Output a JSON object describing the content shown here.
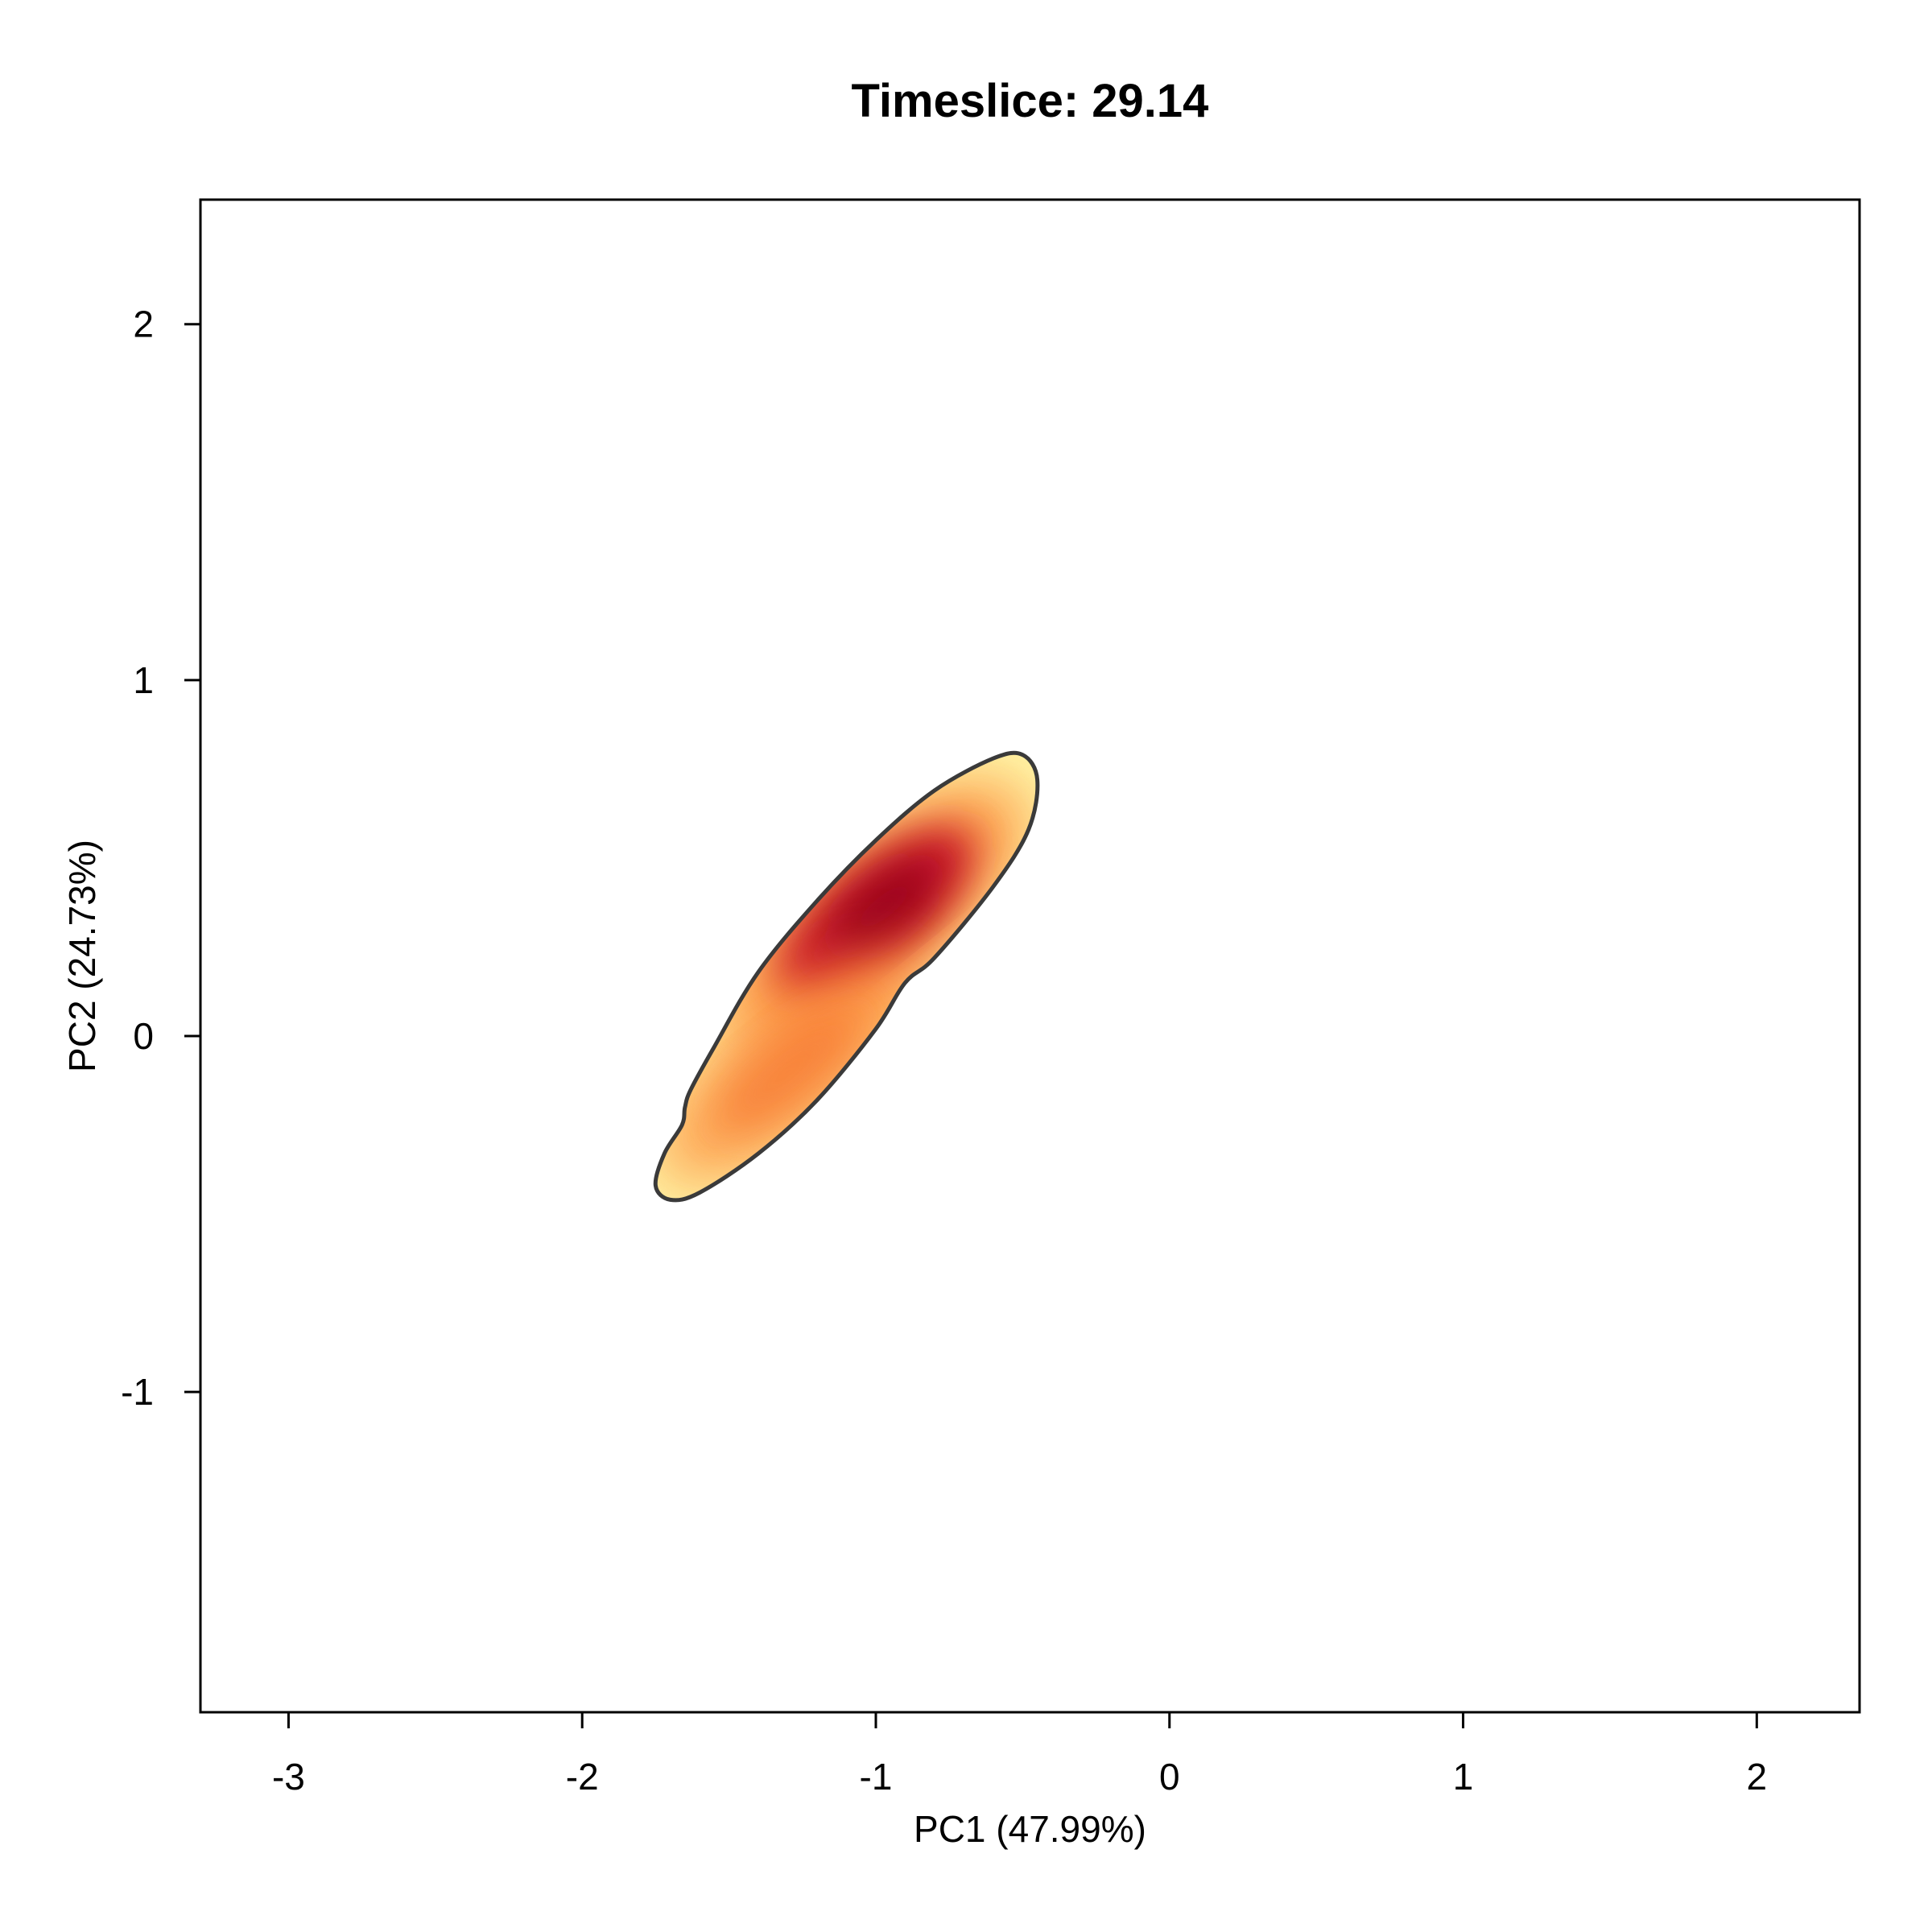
{
  "chart_data": {
    "type": "density",
    "title": "Timeslice: 29.14",
    "xlabel": "PC1 (47.99%)",
    "ylabel": "PC2 (24.73%)",
    "xlim": [
      -3.3,
      2.35
    ],
    "ylim": [
      -1.9,
      2.35
    ],
    "xticks": [
      -3,
      -2,
      -1,
      0,
      1,
      2
    ],
    "yticks": [
      -1,
      0,
      1,
      2
    ],
    "grid": false,
    "colors": {
      "low": "#fff7a8",
      "mid": "#fd8d3c",
      "high": "#bd0026",
      "contour": "#3a3a3a"
    },
    "density_peaks": [
      {
        "x": -1.0,
        "y": 0.35,
        "intensity": 1.0
      },
      {
        "x": -1.3,
        "y": -0.1,
        "intensity": 0.6
      }
    ],
    "outer_contour": [
      [
        -0.45,
        0.72
      ],
      [
        -0.5,
        0.79
      ],
      [
        -0.6,
        0.78
      ],
      [
        -0.8,
        0.69
      ],
      [
        -1.0,
        0.55
      ],
      [
        -1.2,
        0.38
      ],
      [
        -1.4,
        0.18
      ],
      [
        -1.55,
        -0.03
      ],
      [
        -1.63,
        -0.15
      ],
      [
        -1.65,
        -0.2
      ],
      [
        -1.66,
        -0.25
      ],
      [
        -1.72,
        -0.33
      ],
      [
        -1.75,
        -0.42
      ],
      [
        -1.7,
        -0.46
      ],
      [
        -1.6,
        -0.44
      ],
      [
        -1.4,
        -0.33
      ],
      [
        -1.2,
        -0.18
      ],
      [
        -1.0,
        0.02
      ],
      [
        -0.9,
        0.15
      ],
      [
        -0.8,
        0.22
      ],
      [
        -0.6,
        0.42
      ],
      [
        -0.48,
        0.58
      ]
    ]
  }
}
